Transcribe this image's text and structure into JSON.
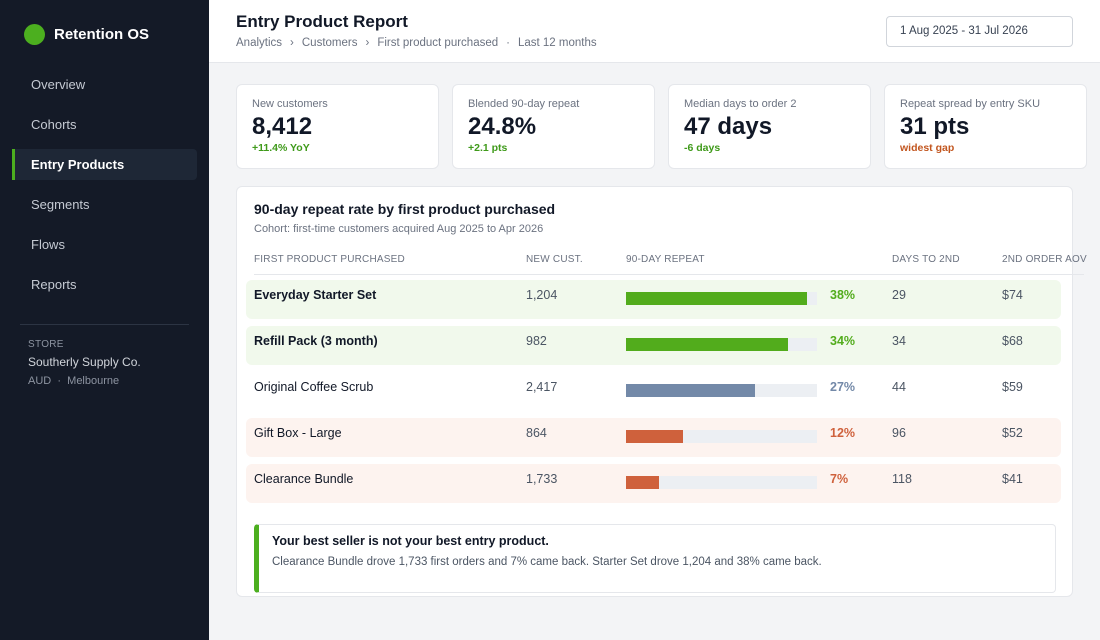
{
  "app": {
    "name": "Retention OS"
  },
  "nav": [
    {
      "label": "Overview",
      "active": false
    },
    {
      "label": "Cohorts",
      "active": false
    },
    {
      "label": "Entry Products",
      "active": true
    },
    {
      "label": "Segments",
      "active": false
    },
    {
      "label": "Flows",
      "active": false
    },
    {
      "label": "Reports",
      "active": false
    }
  ],
  "store": {
    "label": "STORE",
    "name": "Southerly Supply Co.",
    "currency": "AUD",
    "separator": "·",
    "city": "Melbourne"
  },
  "header": {
    "title": "Entry Product Report",
    "breadcrumb": [
      "Analytics",
      "›",
      "Customers",
      "›",
      "First product purchased",
      "·",
      "Last 12 months"
    ],
    "date_range": "1 Aug 2025 - 31 Jul 2026"
  },
  "kpis": [
    {
      "label": "New customers",
      "value": "8,412",
      "delta": "+11.4% YoY",
      "tone": "good"
    },
    {
      "label": "Blended 90-day repeat",
      "value": "24.8%",
      "delta": "+2.1 pts",
      "tone": "good"
    },
    {
      "label": "Median days to order 2",
      "value": "47 days",
      "delta": "-6 days",
      "tone": "good"
    },
    {
      "label": "Repeat spread by entry SKU",
      "value": "31 pts",
      "delta": "widest gap",
      "tone": "warn"
    }
  ],
  "report": {
    "title": "90-day repeat rate by first product purchased",
    "subtitle": "Cohort: first-time customers acquired Aug 2025 to Apr 2026",
    "columns": [
      "FIRST PRODUCT PURCHASED",
      "NEW CUST.",
      "90-DAY REPEAT",
      "DAYS TO 2ND",
      "2ND ORDER AOV"
    ],
    "rows": [
      {
        "product": "Everyday Starter Set",
        "new_customers": "1,204",
        "repeat": 38,
        "repeat_label": "38%",
        "days": "29",
        "aov": "$74",
        "tone": "good",
        "color": "#52ac1c"
      },
      {
        "product": "Refill Pack (3 month)",
        "new_customers": "982",
        "repeat": 34,
        "repeat_label": "34%",
        "days": "34",
        "aov": "$68",
        "tone": "good",
        "color": "#52ac1c"
      },
      {
        "product": "Original Coffee Scrub",
        "new_customers": "2,417",
        "repeat": 27,
        "repeat_label": "27%",
        "days": "44",
        "aov": "$59",
        "tone": "neutral",
        "color": "#7389a8"
      },
      {
        "product": "Gift Box - Large",
        "new_customers": "864",
        "repeat": 12,
        "repeat_label": "12%",
        "days": "96",
        "aov": "$52",
        "tone": "bad",
        "color": "#cf613c"
      },
      {
        "product": "Clearance Bundle",
        "new_customers": "1,733",
        "repeat": 7,
        "repeat_label": "7%",
        "days": "118",
        "aov": "$41",
        "tone": "bad",
        "color": "#cf613c"
      }
    ],
    "bar_max": 40
  },
  "insight": {
    "title": "Your best seller is not your best entry product.",
    "body": "Clearance Bundle drove 1,733 first orders and 7% came back. Starter Set drove 1,204 and 38% came back."
  }
}
